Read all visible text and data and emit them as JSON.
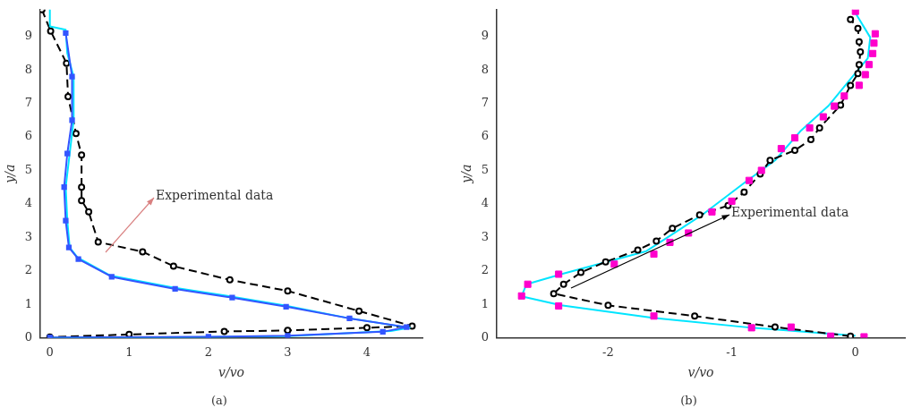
{
  "chart_data": [
    {
      "type": "line",
      "xlabel": "v/vo",
      "ylabel": "y/a",
      "xlim": [
        -0.12,
        4.7
      ],
      "ylim": [
        0,
        9.8
      ],
      "xticks": [
        0,
        1,
        2,
        3,
        4
      ],
      "yticks": [
        0,
        1,
        2,
        3,
        4,
        5,
        6,
        7,
        8,
        9
      ],
      "grid": false,
      "legend": false,
      "annotations": [
        "Experimental data",
        "(a)"
      ],
      "series": [
        {
          "color": "#000000",
          "type": "line",
          "line_style": "dashed",
          "marker": "circle",
          "x": [
            -0.1,
            0.01,
            0.21,
            0.23,
            0.33,
            0.4,
            0.4,
            0.4,
            0.49,
            0.61,
            1.17,
            1.56,
            2.27,
            3.0,
            3.9,
            4.57,
            4.0,
            3.0,
            2.2,
            1.0,
            0.0
          ],
          "values": [
            9.8,
            9.16,
            8.2,
            7.2,
            6.1,
            5.46,
            4.5,
            4.1,
            3.76,
            2.86,
            2.57,
            2.14,
            1.73,
            1.4,
            0.8,
            0.35,
            0.3,
            0.22,
            0.19,
            0.1,
            0.02
          ]
        },
        {
          "color": "#00e5ff",
          "type": "line",
          "line_style": "solid",
          "marker": "none",
          "x": [
            0.0,
            0.0,
            0.2,
            0.22,
            0.3,
            0.3,
            0.25,
            0.2,
            0.22,
            0.25,
            0.35,
            0.76,
            1.56,
            2.27,
            2.95,
            3.74,
            4.54,
            4.3,
            3.0,
            2.0,
            0.0
          ],
          "values": [
            9.8,
            9.3,
            9.2,
            8.5,
            7.8,
            6.5,
            5.5,
            4.5,
            3.5,
            2.7,
            2.4,
            1.86,
            1.5,
            1.24,
            0.97,
            0.6,
            0.3,
            0.2,
            0.05,
            0.02,
            0.0
          ]
        },
        {
          "color": "#3355ff",
          "type": "line",
          "line_style": "solid",
          "marker": "square",
          "x": [
            0.2,
            0.28,
            0.28,
            0.22,
            0.18,
            0.2,
            0.24,
            0.36,
            0.78,
            1.58,
            2.3,
            2.98,
            3.78,
            4.5,
            4.2,
            3.0,
            2.0,
            0.0
          ],
          "values": [
            9.1,
            7.8,
            6.5,
            5.5,
            4.5,
            3.5,
            2.7,
            2.35,
            1.82,
            1.46,
            1.2,
            0.93,
            0.58,
            0.32,
            0.18,
            0.06,
            0.03,
            0.01
          ]
        }
      ]
    },
    {
      "type": "line",
      "xlabel": "v/vo",
      "ylabel": "y/a",
      "xlim": [
        -2.9,
        0.4
      ],
      "ylim": [
        0,
        9.8
      ],
      "xticks": [
        -2,
        -1,
        0
      ],
      "yticks": [
        0,
        1,
        2,
        3,
        4,
        5,
        6,
        7,
        8,
        9
      ],
      "grid": false,
      "legend": false,
      "annotations": [
        "Experimental data",
        "(b)"
      ],
      "series": [
        {
          "color": "#00e5ff",
          "type": "line",
          "line_style": "solid",
          "marker": "none",
          "x": [
            0.0,
            -0.84,
            -1.64,
            -2.38,
            -2.7,
            -2.66,
            -2.36,
            -1.69,
            -1.24,
            -0.89,
            -0.65,
            -0.44,
            -0.22,
            -0.04,
            0.1,
            0.12,
            0.0
          ],
          "values": [
            0.06,
            0.3,
            0.6,
            0.97,
            1.24,
            1.6,
            1.92,
            2.59,
            3.67,
            4.65,
            5.3,
            6.19,
            6.92,
            7.73,
            8.35,
            8.97,
            9.7
          ]
        },
        {
          "color": "#000000",
          "type": "line",
          "line_style": "dashed",
          "marker": "circle",
          "x": [
            -0.04,
            -0.65,
            -1.3,
            -2.0,
            -2.44,
            -2.36,
            -2.22,
            -2.02,
            -1.76,
            -1.61,
            -1.48,
            -1.26,
            -1.03,
            -0.9,
            -0.77,
            -0.69,
            -0.49,
            -0.36,
            -0.29,
            -0.12,
            -0.04,
            0.02,
            0.03,
            0.04,
            0.03,
            0.02,
            -0.04
          ],
          "values": [
            0.05,
            0.32,
            0.65,
            0.97,
            1.32,
            1.6,
            1.95,
            2.27,
            2.62,
            2.89,
            3.27,
            3.67,
            3.95,
            4.35,
            4.89,
            5.3,
            5.6,
            5.92,
            6.27,
            6.95,
            7.54,
            7.89,
            8.16,
            8.54,
            8.84,
            9.24,
            9.51
          ]
        },
        {
          "color": "#ff00cc",
          "type": "scatter",
          "marker": "square",
          "x": [
            0.07,
            -0.2,
            -0.52,
            -0.84,
            -1.63,
            -2.4,
            -2.7,
            -2.65,
            -2.4,
            -1.95,
            -1.63,
            -1.5,
            -1.35,
            -1.16,
            -1.0,
            -0.86,
            -0.76,
            -0.6,
            -0.49,
            -0.37,
            -0.26,
            -0.17,
            -0.09,
            0.03,
            0.08,
            0.11,
            0.14,
            0.15,
            0.16,
            0.0
          ],
          "values": [
            0.03,
            0.05,
            0.32,
            0.3,
            0.65,
            0.95,
            1.25,
            1.6,
            1.9,
            2.2,
            2.5,
            2.85,
            3.13,
            3.76,
            4.08,
            4.7,
            5.0,
            5.65,
            5.97,
            6.27,
            6.6,
            6.92,
            7.22,
            7.54,
            7.86,
            8.16,
            8.49,
            8.8,
            9.08,
            9.75
          ]
        }
      ]
    }
  ]
}
